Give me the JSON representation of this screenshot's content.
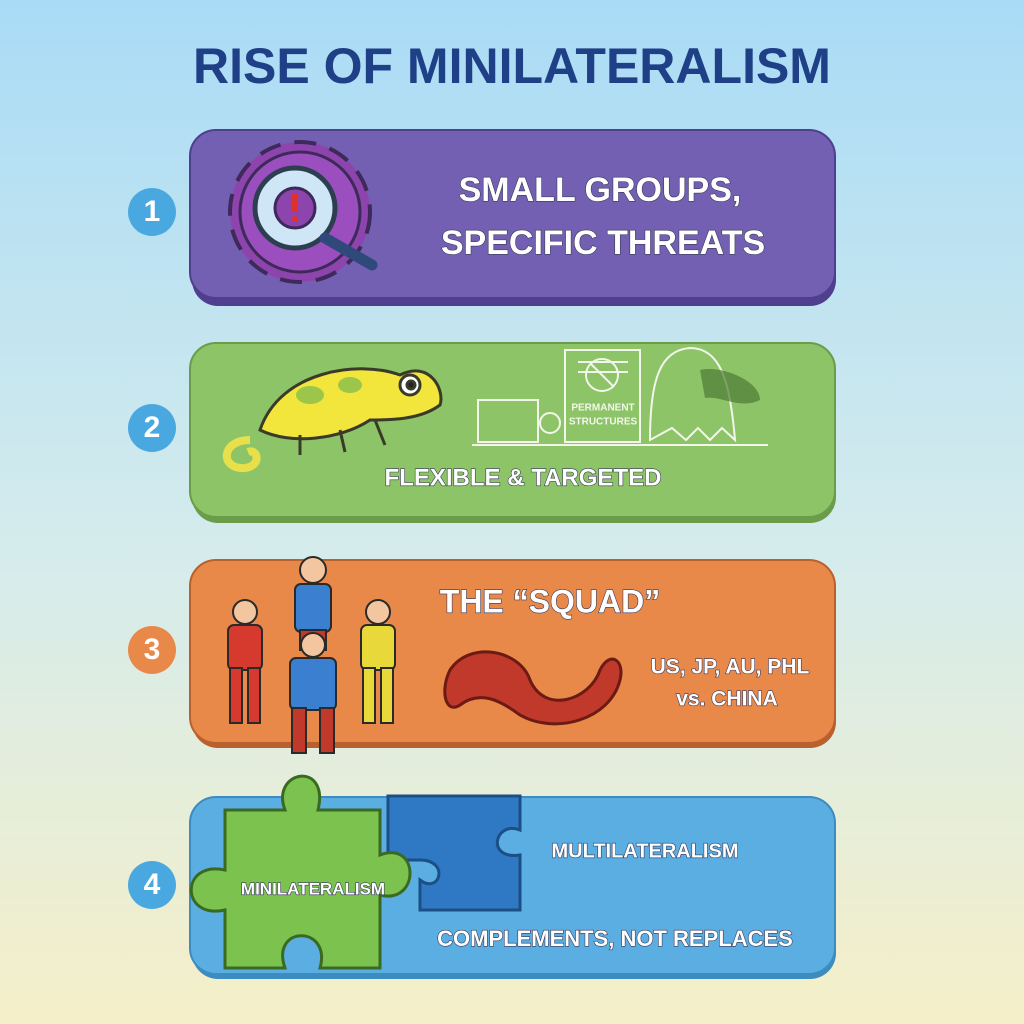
{
  "header": {
    "title": "RISE OF MINILATERALISM"
  },
  "items": [
    {
      "number": 1,
      "lines": [
        "SMALL GROUPS,",
        "SPECIFIC THREATS"
      ]
    },
    {
      "number": 2,
      "caption": "FLEXIBLE & TARGETED",
      "illustration_label": [
        "PERMANENT",
        "STRUCTURES"
      ]
    },
    {
      "number": 3,
      "heading": "THE “SQUAD”",
      "members": "US, JP, AU, PHL",
      "rival": "vs. CHINA"
    },
    {
      "number": 4,
      "left_piece": "MINILATERALISM",
      "right_piece": "MULTILATERALISM",
      "caption": "COMPLEMENTS, NOT REPLACES"
    }
  ]
}
